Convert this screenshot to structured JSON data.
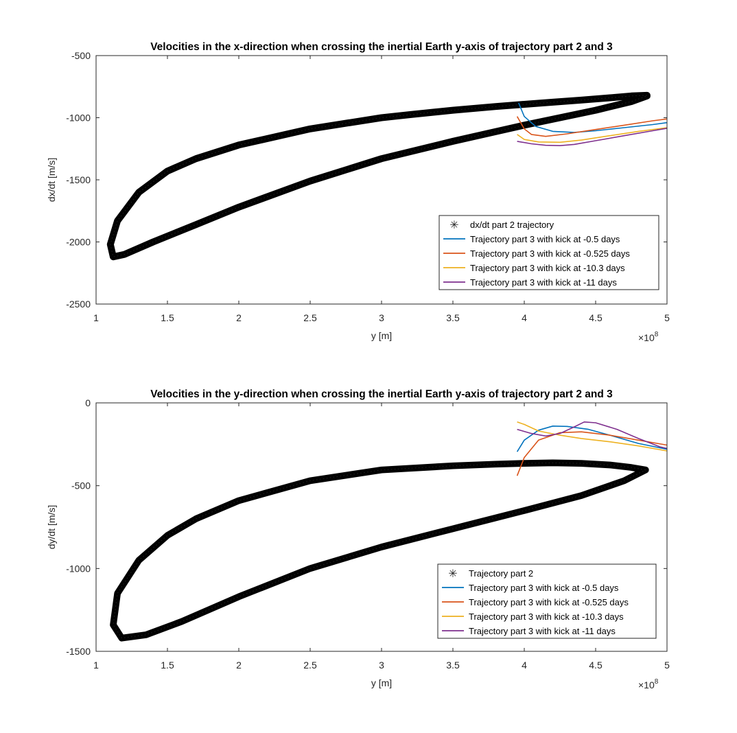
{
  "chart_data": [
    {
      "type": "line",
      "title": "Velocities in the x-direction when crossing the inertial Earth y-axis of trajectory part 2 and 3",
      "xlabel": "y [m]",
      "ylabel": "dx/dt [m/s]",
      "x_exponent_label": "×10",
      "x_exponent": "8",
      "xlim": [
        1,
        5
      ],
      "ylim": [
        -2500,
        -500
      ],
      "xticks": [
        "1",
        "1.5",
        "2",
        "2.5",
        "3",
        "3.5",
        "4",
        "4.5",
        "5"
      ],
      "yticks": [
        "-500",
        "-1000",
        "-1500",
        "-2000",
        "-2500"
      ],
      "legend_position": "bottom-right",
      "loop": {
        "name": "dx/dt part 2 trajectory",
        "x": [
          4.86,
          4.75,
          4.6,
          4.4,
          4.2,
          4.0,
          3.8,
          3.5,
          3.2,
          3.0,
          2.5,
          2.0,
          1.7,
          1.5,
          1.3,
          1.15,
          1.1,
          1.12,
          1.2,
          1.4,
          1.7,
          2.0,
          2.5,
          3.0,
          3.5,
          4.0,
          4.5,
          4.75,
          4.86
        ],
        "y": [
          -820,
          -825,
          -840,
          -858,
          -875,
          -892,
          -910,
          -940,
          -975,
          -1000,
          -1090,
          -1220,
          -1330,
          -1430,
          -1600,
          -1830,
          -2020,
          -2120,
          -2100,
          -2000,
          -1860,
          -1720,
          -1510,
          -1330,
          -1190,
          -1060,
          -940,
          -870,
          -825
        ],
        "thickness": 55
      },
      "series": [
        {
          "name": "Trajectory part 3 with kick at -0.5 days",
          "color": "#0072BD",
          "x": [
            3.96,
            4.0,
            4.08,
            4.2,
            4.35,
            4.5,
            4.7,
            4.9,
            5.0
          ],
          "y": [
            -880,
            -990,
            -1070,
            -1110,
            -1118,
            -1105,
            -1080,
            -1055,
            -1040
          ]
        },
        {
          "name": "Trajectory part 3 with kick at -0.525 days",
          "color": "#D95319",
          "x": [
            3.95,
            4.0,
            4.05,
            4.15,
            4.3,
            4.5,
            4.7,
            4.9,
            5.0
          ],
          "y": [
            -990,
            -1090,
            -1135,
            -1150,
            -1130,
            -1095,
            -1060,
            -1025,
            -1010
          ]
        },
        {
          "name": "Trajectory part 3 with kick at -10.3 days",
          "color": "#EDB120",
          "x": [
            3.95,
            4.0,
            4.1,
            4.25,
            4.4,
            4.6,
            4.8,
            5.0
          ],
          "y": [
            -1135,
            -1175,
            -1195,
            -1198,
            -1180,
            -1145,
            -1110,
            -1080
          ]
        },
        {
          "name": "Trajectory part 3 with kick at -11 days",
          "color": "#7E2F8E",
          "x": [
            3.95,
            4.05,
            4.15,
            4.25,
            4.35,
            4.5,
            4.7,
            4.9,
            5.0
          ],
          "y": [
            -1190,
            -1210,
            -1222,
            -1225,
            -1215,
            -1185,
            -1145,
            -1105,
            -1085
          ]
        }
      ]
    },
    {
      "type": "line",
      "title": "Velocities in the y-direction when crossing the inertial Earth y-axis of trajectory part 2 and 3",
      "xlabel": "y [m]",
      "ylabel": "dy/dt [m/s]",
      "x_exponent_label": "×10",
      "x_exponent": "8",
      "xlim": [
        1,
        5
      ],
      "ylim": [
        -1500,
        0
      ],
      "xticks": [
        "1",
        "1.5",
        "2",
        "2.5",
        "3",
        "3.5",
        "4",
        "4.5",
        "5"
      ],
      "yticks": [
        "0",
        "-500",
        "-1000",
        "-1500"
      ],
      "legend_position": "bottom-right",
      "loop": {
        "name": "Trajectory part 2",
        "x": [
          4.85,
          4.75,
          4.6,
          4.4,
          4.2,
          4.0,
          3.8,
          3.5,
          3.0,
          2.5,
          2.0,
          1.7,
          1.5,
          1.3,
          1.15,
          1.12,
          1.18,
          1.35,
          1.6,
          2.0,
          2.5,
          3.0,
          3.5,
          4.0,
          4.4,
          4.7,
          4.85
        ],
        "y": [
          -405,
          -390,
          -375,
          -365,
          -362,
          -365,
          -370,
          -380,
          -405,
          -470,
          -590,
          -700,
          -800,
          -950,
          -1150,
          -1340,
          -1420,
          -1400,
          -1320,
          -1170,
          -1000,
          -870,
          -760,
          -650,
          -560,
          -470,
          -405
        ],
        "thickness": 40
      },
      "series": [
        {
          "name": "Trajectory part 3 with kick at -0.5 days",
          "color": "#0072BD",
          "x": [
            3.95,
            4.0,
            4.1,
            4.2,
            4.3,
            4.45,
            4.6,
            4.8,
            5.0
          ],
          "y": [
            -295,
            -225,
            -165,
            -140,
            -142,
            -160,
            -195,
            -245,
            -280
          ]
        },
        {
          "name": "Trajectory part 3 with kick at -0.525 days",
          "color": "#D95319",
          "x": [
            3.95,
            4.0,
            4.1,
            4.25,
            4.4,
            4.6,
            4.8,
            5.0
          ],
          "y": [
            -440,
            -330,
            -225,
            -180,
            -175,
            -195,
            -225,
            -255
          ]
        },
        {
          "name": "Trajectory part 3 with kick at -10.3 days",
          "color": "#EDB120",
          "x": [
            3.95,
            4.0,
            4.1,
            4.25,
            4.4,
            4.6,
            4.8,
            5.0
          ],
          "y": [
            -115,
            -130,
            -170,
            -195,
            -215,
            -235,
            -260,
            -290
          ]
        },
        {
          "name": "Trajectory part 3 with kick at -11 days",
          "color": "#7E2F8E",
          "x": [
            3.95,
            4.05,
            4.15,
            4.25,
            4.35,
            4.42,
            4.5,
            4.65,
            4.8,
            4.95,
            5.0
          ],
          "y": [
            -160,
            -185,
            -200,
            -185,
            -145,
            -115,
            -120,
            -160,
            -215,
            -265,
            -275
          ]
        }
      ]
    }
  ]
}
